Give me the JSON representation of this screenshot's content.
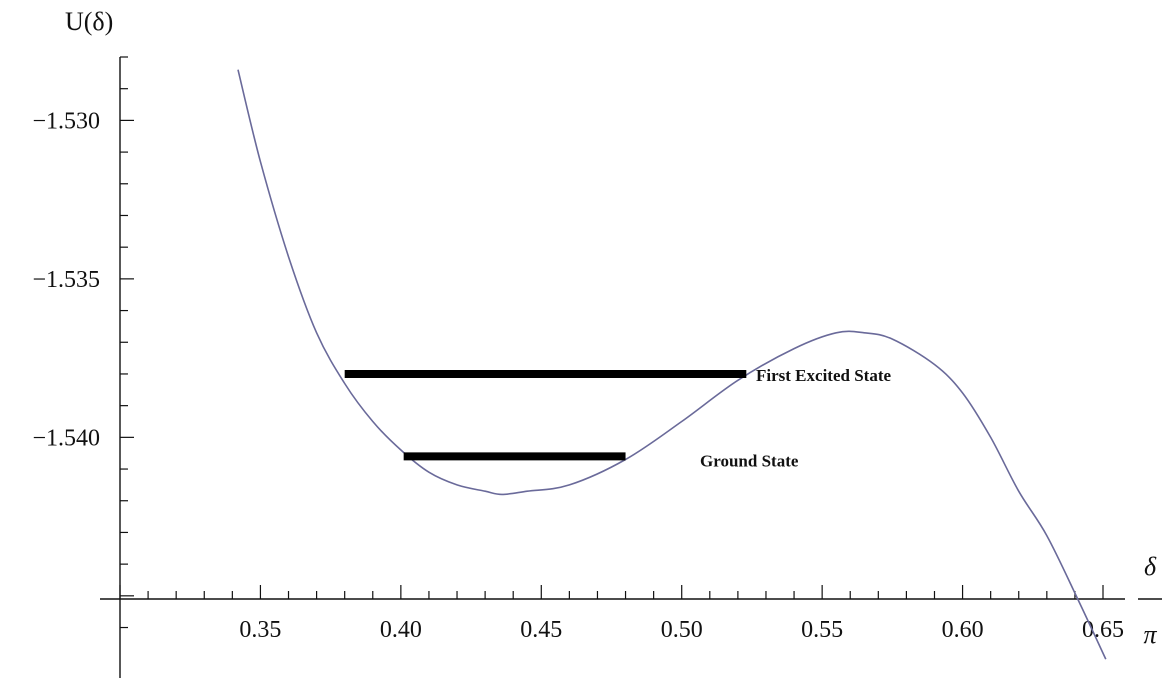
{
  "chart_data": {
    "type": "line",
    "title": "",
    "ylabel": "U(δ)",
    "xlabel": {
      "numerator": "δ",
      "denominator": "π"
    },
    "xlim": [
      0.3,
      0.65
    ],
    "ylim": [
      -1.5451,
      -1.528
    ],
    "x_axis_at_y": -1.5451,
    "x_ticks": [
      "0.35",
      "0.40",
      "0.45",
      "0.50",
      "0.55",
      "0.60",
      "0.65"
    ],
    "y_ticks": [
      "-1.530",
      "-1.535",
      "-1.540"
    ],
    "grid": false,
    "series": [
      {
        "color": "#6a6a9a",
        "x": [
          0.342,
          0.35,
          0.36,
          0.37,
          0.38,
          0.39,
          0.4,
          0.41,
          0.42,
          0.43,
          0.436,
          0.445,
          0.46,
          0.48,
          0.5,
          0.52,
          0.54,
          0.555,
          0.565,
          0.575,
          0.59,
          0.6,
          0.61,
          0.62,
          0.63,
          0.641,
          0.651
        ],
        "y": [
          -1.5284,
          -1.5313,
          -1.5343,
          -1.5367,
          -1.5383,
          -1.5395,
          -1.5404,
          -1.5411,
          -1.5415,
          -1.5417,
          -1.5418,
          -1.5417,
          -1.5415,
          -1.5407,
          -1.5395,
          -1.5382,
          -1.5372,
          -1.5367,
          -1.5367,
          -1.5369,
          -1.5377,
          -1.5386,
          -1.54,
          -1.5417,
          -1.5431,
          -1.5451,
          -1.547
        ]
      }
    ],
    "levels": [
      {
        "label": "First Excited State",
        "y": -1.538,
        "x_start": 0.38,
        "x_end": 0.523
      },
      {
        "label": "Ground State",
        "y": -1.5406,
        "x_start": 0.401,
        "x_end": 0.48
      }
    ]
  }
}
